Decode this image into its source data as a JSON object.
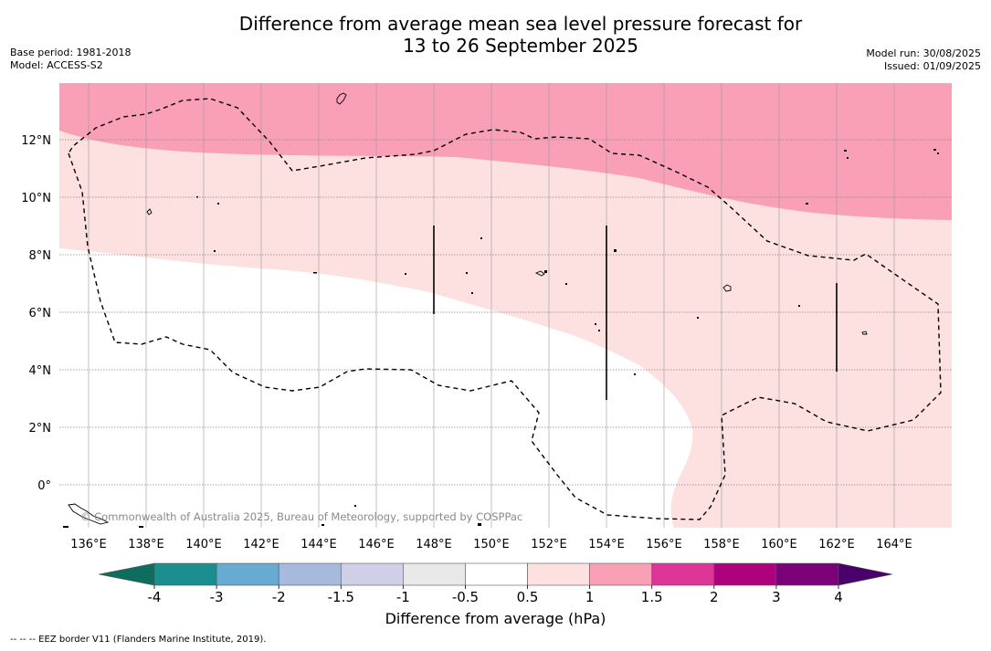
{
  "title": {
    "line1": "Difference from average mean sea level pressure forecast for",
    "line2": "13 to 26 September 2025"
  },
  "meta_left": {
    "base_period": "Base period: 1981-2018",
    "model": "Model: ACCESS-S2"
  },
  "meta_right": {
    "model_run": "Model run: 30/08/2025",
    "issued": "Issued: 01/09/2025"
  },
  "map": {
    "lon_ticks": [
      "136°E",
      "138°E",
      "140°E",
      "142°E",
      "144°E",
      "146°E",
      "148°E",
      "150°E",
      "152°E",
      "154°E",
      "156°E",
      "158°E",
      "160°E",
      "162°E",
      "164°E"
    ],
    "lat_ticks": [
      "12°N",
      "10°N",
      "8°N",
      "6°N",
      "4°N",
      "2°N",
      "0°"
    ],
    "copyright": "© Commonwealth of Australia 2025, Bureau of Meteorology, supported by COSPPac",
    "colors": {
      "band_1_1_5": "#f9a0b6",
      "band_0_5_1": "#fde0e0",
      "background": "#ffffff",
      "eez_line": "#000000"
    }
  },
  "colorbar": {
    "ticks": [
      "-4",
      "-3",
      "-2",
      "-1.5",
      "-1",
      "-0.5",
      "0.5",
      "1",
      "1.5",
      "2",
      "3",
      "4"
    ],
    "colors": [
      "#1b8f8f",
      "#67aad2",
      "#a7b9dc",
      "#cfd0e8",
      "#e9e9ea",
      "#ffffff",
      "#fde0e0",
      "#f9a0b6",
      "#dd3497",
      "#ae017e",
      "#7a0177"
    ],
    "under_color": "#0e6d5e",
    "over_color": "#49006a",
    "label": "Difference from average (hPa)"
  },
  "footnote": "--  --  -- EEZ border V11 (Flanders Marine Institute, 2019)."
}
